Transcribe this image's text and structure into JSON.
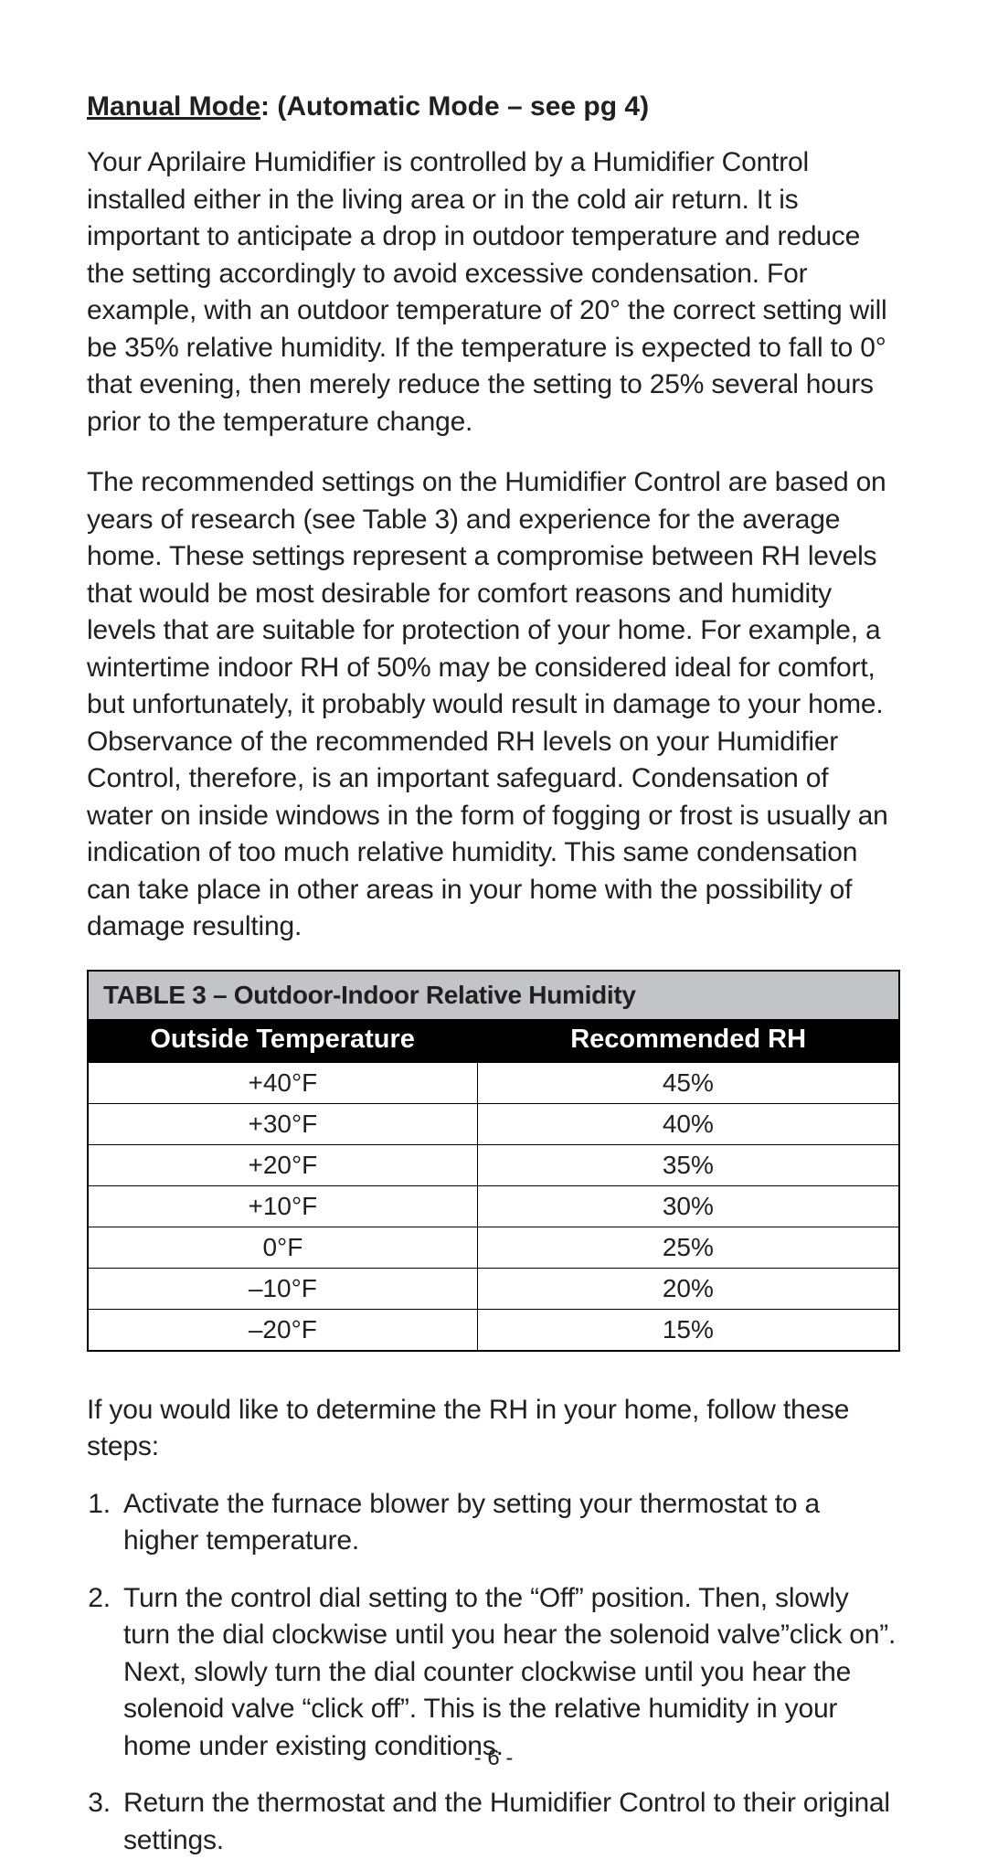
{
  "heading": {
    "underlined": "Manual Mode",
    "rest": ": (Automatic Mode – see pg 4)"
  },
  "paragraphs": [
    "Your Aprilaire Humidifier is controlled by a Humidifier Control installed either in the living area or in the cold air return. It is important to anticipate a drop in outdoor temperature and reduce the setting accordingly to avoid excessive condensation. For example, with an outdoor temperature of 20° the correct setting will be 35% relative humidity. If the temperature is expected to fall to 0° that evening, then merely reduce the setting to 25% several hours prior to the temperature change.",
    "The recommended settings on the Humidifier Control are based on years of research (see Table 3) and experience for the average home. These settings represent a compromise between RH levels that would be most desirable for comfort reasons and humidity levels that are suitable for protection of your home. For example, a wintertime indoor RH of 50% may be considered ideal for comfort, but unfortunately, it probably would result in damage to your home. Observance of the recommended RH levels on your Humidifier Control, therefore, is an important safeguard. Condensation of water on inside windows in the form of fogging or frost is usually an indication of too much relative humidity. This same condensation can take place in other areas in your home with the possibility of damage resulting."
  ],
  "table": {
    "title": "TABLE 3 – Outdoor-Indoor Relative Humidity",
    "columns": [
      "Outside Temperature",
      "Recommended RH"
    ],
    "rows": [
      [
        "+40°F",
        "45%"
      ],
      [
        "+30°F",
        "40%"
      ],
      [
        "+20°F",
        "35%"
      ],
      [
        "+10°F",
        "30%"
      ],
      [
        "0°F",
        "25%"
      ],
      [
        "–10°F",
        "20%"
      ],
      [
        "–20°F",
        "15%"
      ]
    ],
    "title_bg": "#c3c4c5",
    "header_bg": "#000000",
    "header_fg": "#ffffff",
    "border_color": "#000000",
    "cell_fontsize": 28
  },
  "steps_intro": "If you would like to determine the RH in your home, follow these steps:",
  "steps": [
    "Activate the furnace blower by setting your thermostat to a higher temperature.",
    "Turn the control dial setting to the “Off” position. Then, slowly turn the dial clockwise until you hear the solenoid valve”click on”. Next, slowly turn the dial counter clockwise until you hear the solenoid valve “click off”. This is the relative humidity in your home under existing conditions.",
    "Return the thermostat and the Humidifier Control to their original settings."
  ],
  "page_number": "- 6 -"
}
